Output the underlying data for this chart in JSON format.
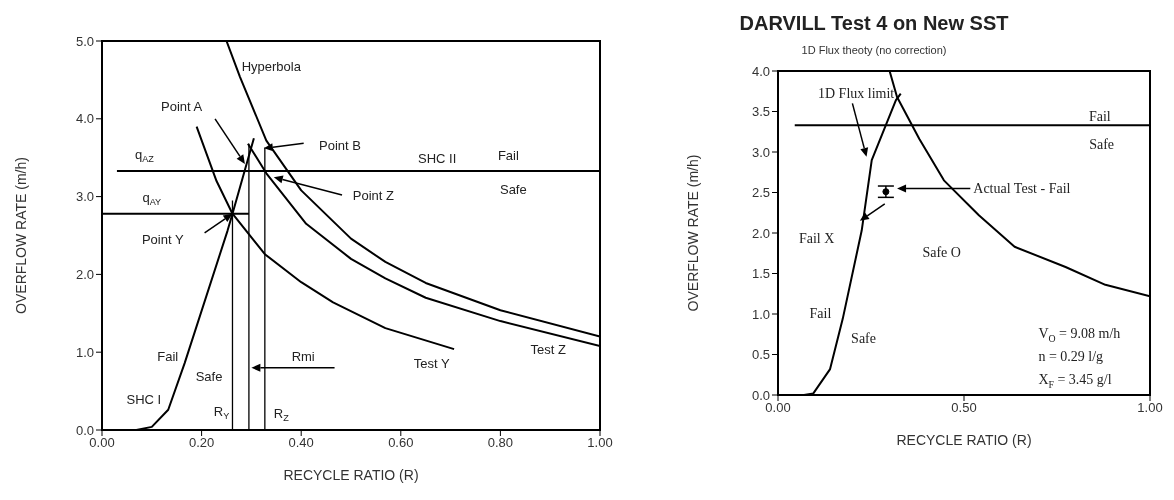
{
  "chart_data": [
    {
      "type": "line",
      "xlabel": "RECYCLE RATIO (R)",
      "ylabel": "OVERFLOW RATE (m/h)",
      "marker": "none",
      "xlim": [
        0,
        1
      ],
      "xticks": [
        {
          "value": 0,
          "label": "0.00"
        },
        {
          "value": 0.2,
          "label": "0.20"
        },
        {
          "value": 0.4,
          "label": "0.40"
        },
        {
          "value": 0.6,
          "label": "0.60"
        },
        {
          "value": 0.8,
          "label": "0.80"
        },
        {
          "value": 1,
          "label": "1.00"
        }
      ],
      "ylim": [
        0,
        5
      ],
      "yticks": [
        {
          "value": 0,
          "label": "0.0"
        },
        {
          "value": 1,
          "label": "1.0"
        },
        {
          "value": 2,
          "label": "2.0"
        },
        {
          "value": 3,
          "label": "3.0"
        },
        {
          "value": 4,
          "label": "4.0"
        },
        {
          "value": 5,
          "label": "5.0"
        }
      ],
      "series": [
        {
          "color": "#000000",
          "x": [
            0.25,
            0.277,
            0.33,
            0.4,
            0.5,
            0.569,
            0.65,
            0.8,
            1.0
          ],
          "values": [
            5.0,
            4.54,
            3.72,
            3.08,
            2.46,
            2.16,
            1.89,
            1.54,
            1.2
          ]
        },
        {
          "color": "#000000",
          "x": [
            0.293,
            0.33,
            0.41,
            0.5,
            0.569,
            0.65,
            0.8,
            1.0
          ],
          "values": [
            3.68,
            3.3,
            2.65,
            2.2,
            1.95,
            1.7,
            1.4,
            1.08
          ]
        },
        {
          "color": "#000000",
          "x": [
            0.19,
            0.23,
            0.262,
            0.327,
            0.4,
            0.464,
            0.569,
            0.707
          ],
          "values": [
            3.9,
            3.2,
            2.78,
            2.26,
            1.9,
            1.64,
            1.31,
            1.04
          ]
        },
        {
          "color": "#000000",
          "x": [
            0.069,
            0.1,
            0.133,
            0.166,
            0.252,
            0.262,
            0.305
          ],
          "values": [
            0,
            0.04,
            0.26,
            0.86,
            2.56,
            2.78,
            3.75
          ]
        },
        {
          "color": "#000000",
          "x": [
            0.03,
            1.0
          ],
          "values": [
            3.33,
            3.33
          ]
        },
        {
          "color": "#000000",
          "x": [
            0,
            0.295
          ],
          "values": [
            2.78,
            2.78
          ]
        },
        {
          "color": "#000000",
          "x": [
            0.262,
            0.262
          ],
          "values": [
            0,
            2.95
          ]
        },
        {
          "color": "#000000",
          "x": [
            0.295,
            0.295
          ],
          "values": [
            0,
            3.68
          ]
        },
        {
          "color": "#000000",
          "x": [
            0.327,
            0.327
          ],
          "values": [
            0,
            3.63
          ]
        }
      ],
      "annotations": [
        "Hyperbola",
        "Point A",
        "Point B",
        "Point Z",
        "Point Y",
        "Rmi",
        "q$_{AZ}$",
        "q$_{AY}$",
        "SHC II",
        "Fail",
        "Safe",
        "Fail",
        "Safe",
        "SHC I",
        "R$_{Y}$",
        "R$_{Z}$",
        "Test Y",
        "Test Z"
      ]
    },
    {
      "type": "line",
      "title": "DARVILL Test 4 on New SST",
      "subtitle": "1D Flux theoty (no correction)",
      "xlabel": "RECYCLE RATIO (R)",
      "ylabel": "OVERFLOW RATE (m/h)",
      "marker": "none",
      "xlim": [
        0,
        1
      ],
      "xticks": [
        {
          "value": 0,
          "label": "0.00"
        },
        {
          "value": 0.5,
          "label": "0.50"
        },
        {
          "value": 1,
          "label": "1.00"
        }
      ],
      "ylim": [
        0,
        4
      ],
      "yticks": [
        {
          "value": 0,
          "label": "0.0"
        },
        {
          "value": 0.5,
          "label": "0.5"
        },
        {
          "value": 1,
          "label": "1.0"
        },
        {
          "value": 1.5,
          "label": "1.5"
        },
        {
          "value": 2,
          "label": "2.0"
        },
        {
          "value": 2.5,
          "label": "2.5"
        },
        {
          "value": 3,
          "label": "3.0"
        },
        {
          "value": 3.5,
          "label": "3.5"
        },
        {
          "value": 4,
          "label": "4.0"
        }
      ],
      "series": [
        {
          "color": "#000000",
          "x": [
            0.07,
            0.095,
            0.14,
            0.174,
            0.225,
            0.252,
            0.317,
            0.33
          ],
          "values": [
            0,
            0.02,
            0.32,
            0.94,
            2.03,
            2.9,
            3.64,
            3.72
          ]
        },
        {
          "color": "#000000",
          "x": [
            0.3,
            0.32,
            0.38,
            0.446,
            0.54,
            0.636,
            0.773,
            0.88,
            1.0
          ],
          "values": [
            4.0,
            3.68,
            3.16,
            2.65,
            2.22,
            1.83,
            1.58,
            1.36,
            1.22
          ]
        },
        {
          "color": "#000000",
          "x": [
            0.045,
            1.0
          ],
          "values": [
            3.33,
            3.33
          ]
        },
        {
          "type": "scatter",
          "marker": "circle",
          "color": "#000000",
          "x": [
            0.29
          ],
          "values": [
            2.51
          ],
          "errors": [
            [
              2.44,
              2.58
            ]
          ]
        }
      ],
      "annotations": [
        "1D Flux limit",
        "Actual Test - Fail",
        "Fail X",
        "Fail",
        "Safe",
        "Safe O",
        "Fail",
        "Safe",
        "V$_{O}$ = 9.08 m/h",
        "n = 0.29 l/g",
        "X$_{F}$ = 3.45 g/l"
      ]
    }
  ]
}
